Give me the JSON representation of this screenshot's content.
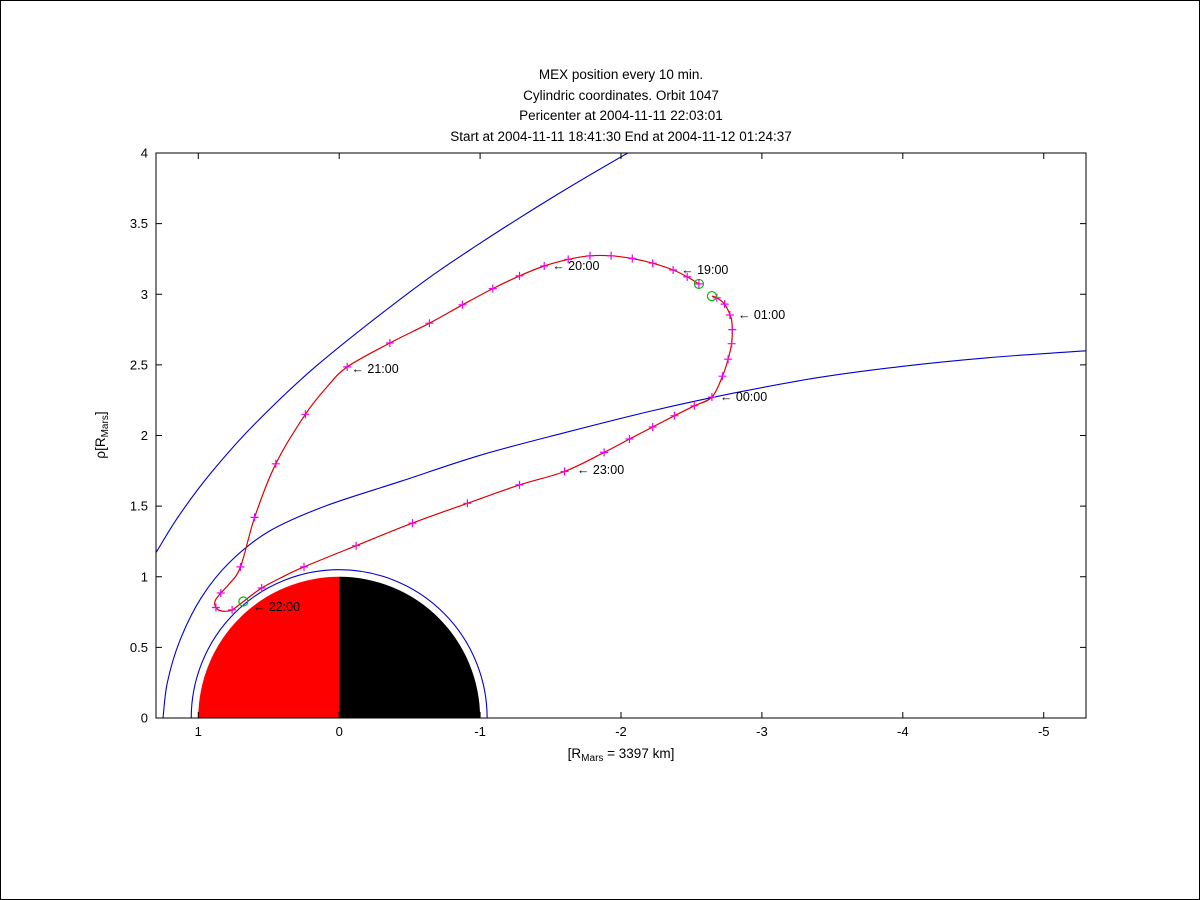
{
  "title": {
    "line1": "MEX position every 10 min.",
    "line2": "Cylindric coordinates. Orbit 1047",
    "line3": "Pericenter at 2004-11-11 22:03:01",
    "line4": "Start at 2004-11-11 18:41:30 End at 2004-11-12 01:24:37"
  },
  "chart_data": {
    "type": "line",
    "title": "MEX position every 10 min. Cylindric coordinates. Orbit 1047",
    "xlabel": {
      "pre": "[R",
      "sub": "Mars",
      "post": " = 3397 km]"
    },
    "ylabel": {
      "pre": "ρ[R",
      "sub": "Mars",
      "post": "]"
    },
    "xlim": [
      1.3,
      -5.3
    ],
    "ylim": [
      0,
      4
    ],
    "x_axis_reversed": true,
    "x_ticks": [
      1,
      0,
      -1,
      -2,
      -3,
      -4,
      -5
    ],
    "y_ticks": [
      0,
      0.5,
      1,
      1.5,
      2,
      2.5,
      3,
      3.5,
      4
    ],
    "grid": false,
    "colors": {
      "trajectory": "#dd0000",
      "boundaries": "#0000d0",
      "markers": "#f000f0",
      "events": "#00b800",
      "dayside": "#ff0000",
      "nightside": "#000000"
    },
    "planet": {
      "radius": 1.0,
      "outline_circle_radius": 1.05,
      "dayside": "sunward (+x, red)",
      "nightside": "tailward (-x, black)"
    },
    "boundaries": [
      {
        "name": "bow-shock",
        "points": [
          [
            1.627,
            0.0
          ],
          [
            1.554,
            0.551
          ],
          [
            1.351,
            1.073
          ],
          [
            1.288,
            1.191
          ],
          [
            1.127,
            1.447
          ],
          [
            0.907,
            1.739
          ],
          [
            0.6,
            2.081
          ],
          [
            0.16,
            2.494
          ],
          [
            -0.497,
            3.013
          ],
          [
            -0.953,
            3.33
          ],
          [
            -1.537,
            3.7
          ],
          [
            -2.13,
            4.047
          ],
          [
            -2.482,
            4.242
          ]
        ]
      },
      {
        "name": "magnetic-pileup-boundary",
        "points": [
          [
            1.25,
            0.0
          ],
          [
            1.22,
            0.25
          ],
          [
            1.13,
            0.55
          ],
          [
            0.98,
            0.85
          ],
          [
            0.78,
            1.1
          ],
          [
            0.5,
            1.32
          ],
          [
            0.1,
            1.5
          ],
          [
            -0.45,
            1.68
          ],
          [
            -1.0,
            1.86
          ],
          [
            -1.6,
            2.02
          ],
          [
            -2.2,
            2.17
          ],
          [
            -2.8,
            2.3
          ],
          [
            -3.4,
            2.41
          ],
          [
            -4.0,
            2.49
          ],
          [
            -4.6,
            2.55
          ],
          [
            -5.3,
            2.6
          ]
        ]
      }
    ],
    "trajectory": {
      "name": "mex-orbit-1047",
      "points": [
        [
          -2.553,
          3.073
        ],
        [
          -2.47,
          3.123
        ],
        [
          -2.37,
          3.172
        ],
        [
          -2.225,
          3.22
        ],
        [
          -2.08,
          3.253
        ],
        [
          -1.93,
          3.272
        ],
        [
          -1.78,
          3.272
        ],
        [
          -1.625,
          3.247
        ],
        [
          -1.455,
          3.2
        ],
        [
          -1.28,
          3.13
        ],
        [
          -1.09,
          3.04
        ],
        [
          -0.875,
          2.925
        ],
        [
          -0.64,
          2.795
        ],
        [
          -0.36,
          2.655
        ],
        [
          -0.057,
          2.486
        ],
        [
          0.09,
          2.34
        ],
        [
          0.24,
          2.15
        ],
        [
          0.45,
          1.8
        ],
        [
          0.6,
          1.42
        ],
        [
          0.7,
          1.07
        ],
        [
          0.78,
          0.95
        ],
        [
          0.84,
          0.885
        ],
        [
          0.88,
          0.83
        ],
        [
          0.875,
          0.782
        ],
        [
          0.83,
          0.757
        ],
        [
          0.76,
          0.765
        ],
        [
          0.68,
          0.825
        ],
        [
          0.55,
          0.92
        ],
        [
          0.4,
          1.0
        ],
        [
          0.25,
          1.07
        ],
        [
          -0.12,
          1.22
        ],
        [
          -0.52,
          1.38
        ],
        [
          -0.91,
          1.52
        ],
        [
          -1.28,
          1.65
        ],
        [
          -1.6,
          1.745
        ],
        [
          -1.88,
          1.88
        ],
        [
          -2.06,
          1.975
        ],
        [
          -2.225,
          2.06
        ],
        [
          -2.38,
          2.14
        ],
        [
          -2.52,
          2.21
        ],
        [
          -2.645,
          2.272
        ],
        [
          -2.72,
          2.42
        ],
        [
          -2.76,
          2.54
        ],
        [
          -2.785,
          2.65
        ],
        [
          -2.79,
          2.75
        ],
        [
          -2.785,
          2.82
        ],
        [
          -2.773,
          2.853
        ],
        [
          -2.768,
          2.87
        ],
        [
          -2.735,
          2.93
        ],
        [
          -2.68,
          2.975
        ],
        [
          -2.645,
          2.987
        ]
      ]
    },
    "markers_10min": {
      "symbol": "+",
      "points": [
        [
          -2.553,
          3.073
        ],
        [
          -2.47,
          3.123
        ],
        [
          -2.37,
          3.172
        ],
        [
          -2.225,
          3.22
        ],
        [
          -2.08,
          3.253
        ],
        [
          -1.93,
          3.272
        ],
        [
          -1.78,
          3.272
        ],
        [
          -1.625,
          3.247
        ],
        [
          -1.455,
          3.2
        ],
        [
          -1.28,
          3.13
        ],
        [
          -1.09,
          3.04
        ],
        [
          -0.875,
          2.925
        ],
        [
          -0.64,
          2.795
        ],
        [
          -0.36,
          2.655
        ],
        [
          -0.057,
          2.486
        ],
        [
          0.24,
          2.15
        ],
        [
          0.45,
          1.8
        ],
        [
          0.6,
          1.42
        ],
        [
          0.7,
          1.07
        ],
        [
          0.84,
          0.885
        ],
        [
          0.875,
          0.782
        ],
        [
          0.76,
          0.765
        ],
        [
          0.55,
          0.92
        ],
        [
          0.25,
          1.07
        ],
        [
          -0.12,
          1.22
        ],
        [
          -0.52,
          1.38
        ],
        [
          -0.91,
          1.52
        ],
        [
          -1.28,
          1.65
        ],
        [
          -1.6,
          1.745
        ],
        [
          -1.88,
          1.88
        ],
        [
          -2.06,
          1.975
        ],
        [
          -2.225,
          2.06
        ],
        [
          -2.38,
          2.14
        ],
        [
          -2.52,
          2.21
        ],
        [
          -2.645,
          2.272
        ],
        [
          -2.72,
          2.42
        ],
        [
          -2.76,
          2.54
        ],
        [
          -2.785,
          2.65
        ],
        [
          -2.79,
          2.75
        ],
        [
          -2.773,
          2.853
        ],
        [
          -2.735,
          2.93
        ],
        [
          -2.68,
          2.975
        ]
      ]
    },
    "orbit_events": {
      "symbol": "o",
      "points": [
        {
          "name": "start",
          "x": -2.553,
          "rho": 3.073
        },
        {
          "name": "pericenter",
          "x": 0.68,
          "rho": 0.825
        },
        {
          "name": "end",
          "x": -2.645,
          "rho": 2.987
        }
      ]
    },
    "arrow_prefix": "←",
    "time_labels": [
      {
        "text": "19:00",
        "x": -2.37,
        "rho": 3.172
      },
      {
        "text": "20:00",
        "x": -1.455,
        "rho": 3.2
      },
      {
        "text": "21:00",
        "x": -0.03,
        "rho": 2.47
      },
      {
        "text": "22:00",
        "x": 0.67,
        "rho": 0.785
      },
      {
        "text": "23:00",
        "x": -1.63,
        "rho": 1.755
      },
      {
        "text": "00:00",
        "x": -2.645,
        "rho": 2.272
      },
      {
        "text": "01:00",
        "x": -2.773,
        "rho": 2.853
      }
    ]
  }
}
